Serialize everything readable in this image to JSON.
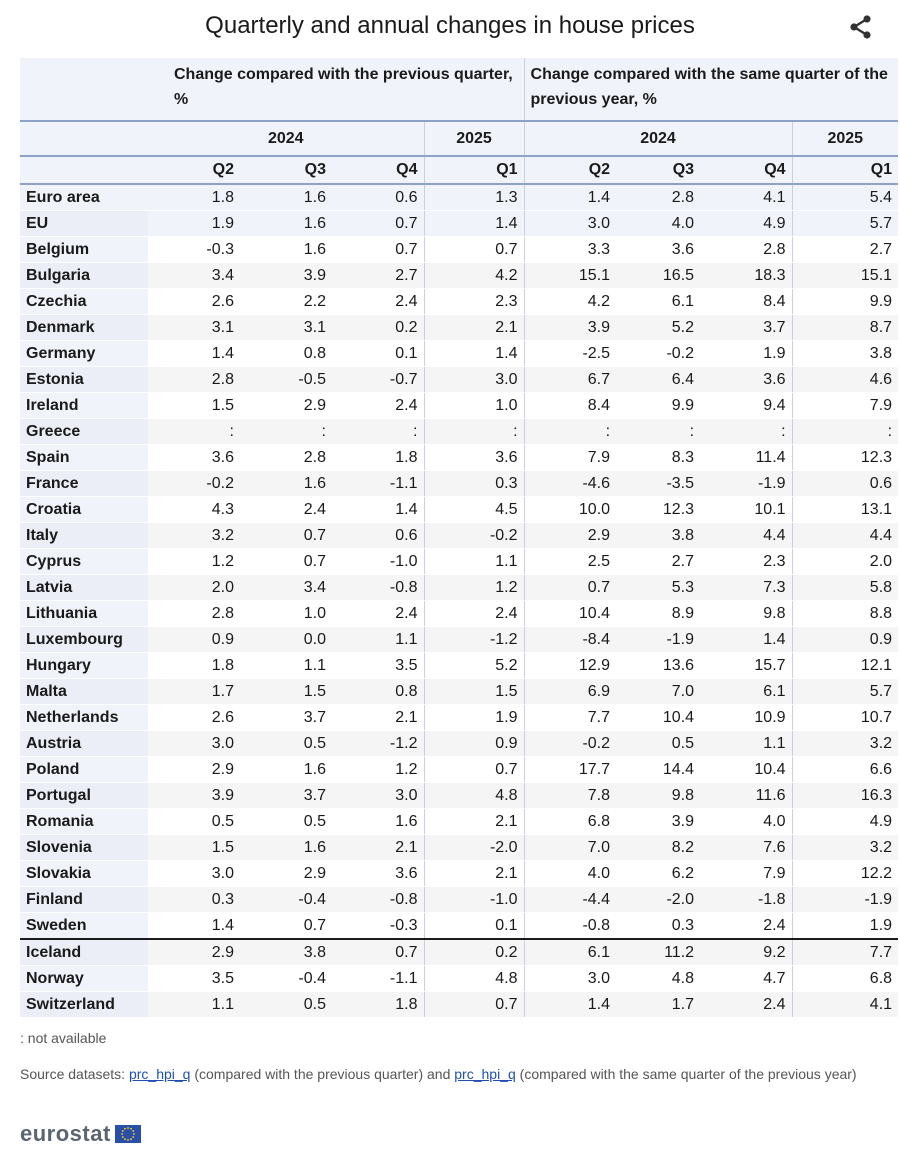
{
  "page": {
    "title": "Quarterly and annual changes in house prices"
  },
  "icons": {
    "share": "share-icon",
    "eu_flag": "eu-flag-icon"
  },
  "colors": {
    "header_bg": "#f1f3fa",
    "header_rule": "#8ea2c9",
    "link": "#1f4fb5"
  },
  "chart_data": {
    "type": "table",
    "title": "Quarterly and annual changes in house prices",
    "group_headers": [
      "Change compared with the previous quarter, %",
      "Change compared with the same quarter of the previous year, %"
    ],
    "year_headers": [
      "2024",
      "2025",
      "2024",
      "2025"
    ],
    "quarter_headers": [
      "Q2",
      "Q3",
      "Q4",
      "Q1",
      "Q2",
      "Q3",
      "Q4",
      "Q1"
    ],
    "rows": [
      {
        "country": "Euro area",
        "values": [
          "1.8",
          "1.6",
          "0.6",
          "1.3",
          "1.4",
          "2.8",
          "4.1",
          "5.4"
        ]
      },
      {
        "country": "EU",
        "values": [
          "1.9",
          "1.6",
          "0.7",
          "1.4",
          "3.0",
          "4.0",
          "4.9",
          "5.7"
        ]
      },
      {
        "country": "Belgium",
        "values": [
          "-0.3",
          "1.6",
          "0.7",
          "0.7",
          "3.3",
          "3.6",
          "2.8",
          "2.7"
        ]
      },
      {
        "country": "Bulgaria",
        "values": [
          "3.4",
          "3.9",
          "2.7",
          "4.2",
          "15.1",
          "16.5",
          "18.3",
          "15.1"
        ]
      },
      {
        "country": "Czechia",
        "values": [
          "2.6",
          "2.2",
          "2.4",
          "2.3",
          "4.2",
          "6.1",
          "8.4",
          "9.9"
        ]
      },
      {
        "country": "Denmark",
        "values": [
          "3.1",
          "3.1",
          "0.2",
          "2.1",
          "3.9",
          "5.2",
          "3.7",
          "8.7"
        ]
      },
      {
        "country": "Germany",
        "values": [
          "1.4",
          "0.8",
          "0.1",
          "1.4",
          "-2.5",
          "-0.2",
          "1.9",
          "3.8"
        ]
      },
      {
        "country": "Estonia",
        "values": [
          "2.8",
          "-0.5",
          "-0.7",
          "3.0",
          "6.7",
          "6.4",
          "3.6",
          "4.6"
        ]
      },
      {
        "country": "Ireland",
        "values": [
          "1.5",
          "2.9",
          "2.4",
          "1.0",
          "8.4",
          "9.9",
          "9.4",
          "7.9"
        ]
      },
      {
        "country": "Greece",
        "values": [
          ":",
          ":",
          ":",
          ":",
          ":",
          ":",
          ":",
          ":"
        ]
      },
      {
        "country": "Spain",
        "values": [
          "3.6",
          "2.8",
          "1.8",
          "3.6",
          "7.9",
          "8.3",
          "11.4",
          "12.3"
        ]
      },
      {
        "country": "France",
        "values": [
          "-0.2",
          "1.6",
          "-1.1",
          "0.3",
          "-4.6",
          "-3.5",
          "-1.9",
          "0.6"
        ]
      },
      {
        "country": "Croatia",
        "values": [
          "4.3",
          "2.4",
          "1.4",
          "4.5",
          "10.0",
          "12.3",
          "10.1",
          "13.1"
        ]
      },
      {
        "country": "Italy",
        "values": [
          "3.2",
          "0.7",
          "0.6",
          "-0.2",
          "2.9",
          "3.8",
          "4.4",
          "4.4"
        ]
      },
      {
        "country": "Cyprus",
        "values": [
          "1.2",
          "0.7",
          "-1.0",
          "1.1",
          "2.5",
          "2.7",
          "2.3",
          "2.0"
        ]
      },
      {
        "country": "Latvia",
        "values": [
          "2.0",
          "3.4",
          "-0.8",
          "1.2",
          "0.7",
          "5.3",
          "7.3",
          "5.8"
        ]
      },
      {
        "country": "Lithuania",
        "values": [
          "2.8",
          "1.0",
          "2.4",
          "2.4",
          "10.4",
          "8.9",
          "9.8",
          "8.8"
        ]
      },
      {
        "country": "Luxembourg",
        "values": [
          "0.9",
          "0.0",
          "1.1",
          "-1.2",
          "-8.4",
          "-1.9",
          "1.4",
          "0.9"
        ]
      },
      {
        "country": "Hungary",
        "values": [
          "1.8",
          "1.1",
          "3.5",
          "5.2",
          "12.9",
          "13.6",
          "15.7",
          "12.1"
        ]
      },
      {
        "country": "Malta",
        "values": [
          "1.7",
          "1.5",
          "0.8",
          "1.5",
          "6.9",
          "7.0",
          "6.1",
          "5.7"
        ]
      },
      {
        "country": "Netherlands",
        "values": [
          "2.6",
          "3.7",
          "2.1",
          "1.9",
          "7.7",
          "10.4",
          "10.9",
          "10.7"
        ]
      },
      {
        "country": "Austria",
        "values": [
          "3.0",
          "0.5",
          "-1.2",
          "0.9",
          "-0.2",
          "0.5",
          "1.1",
          "3.2"
        ]
      },
      {
        "country": "Poland",
        "values": [
          "2.9",
          "1.6",
          "1.2",
          "0.7",
          "17.7",
          "14.4",
          "10.4",
          "6.6"
        ]
      },
      {
        "country": "Portugal",
        "values": [
          "3.9",
          "3.7",
          "3.0",
          "4.8",
          "7.8",
          "9.8",
          "11.6",
          "16.3"
        ]
      },
      {
        "country": "Romania",
        "values": [
          "0.5",
          "0.5",
          "1.6",
          "2.1",
          "6.8",
          "3.9",
          "4.0",
          "4.9"
        ]
      },
      {
        "country": "Slovenia",
        "values": [
          "1.5",
          "1.6",
          "2.1",
          "-2.0",
          "7.0",
          "8.2",
          "7.6",
          "3.2"
        ]
      },
      {
        "country": "Slovakia",
        "values": [
          "3.0",
          "2.9",
          "3.6",
          "2.1",
          "4.0",
          "6.2",
          "7.9",
          "12.2"
        ]
      },
      {
        "country": "Finland",
        "values": [
          "0.3",
          "-0.4",
          "-0.8",
          "-1.0",
          "-4.4",
          "-2.0",
          "-1.8",
          "-1.9"
        ]
      },
      {
        "country": "Sweden",
        "values": [
          "1.4",
          "0.7",
          "-0.3",
          "0.1",
          "-0.8",
          "0.3",
          "2.4",
          "1.9"
        ]
      },
      {
        "country": "Iceland",
        "values": [
          "2.9",
          "3.8",
          "0.7",
          "0.2",
          "6.1",
          "11.2",
          "9.2",
          "7.7"
        ]
      },
      {
        "country": "Norway",
        "values": [
          "3.5",
          "-0.4",
          "-1.1",
          "4.8",
          "3.0",
          "4.8",
          "4.7",
          "6.8"
        ]
      },
      {
        "country": "Switzerland",
        "values": [
          "1.1",
          "0.5",
          "1.8",
          "0.7",
          "1.4",
          "1.7",
          "2.4",
          "4.1"
        ]
      }
    ]
  },
  "footer": {
    "note": ": not available",
    "source_prefix": "Source datasets: ",
    "link1": "prc_hpi_q",
    "link1_desc": " (compared with the previous quarter) and ",
    "link2": "prc_hpi_q",
    "link2_desc": " (compared with the same quarter of the previous year)",
    "logo_text": "eurostat"
  }
}
